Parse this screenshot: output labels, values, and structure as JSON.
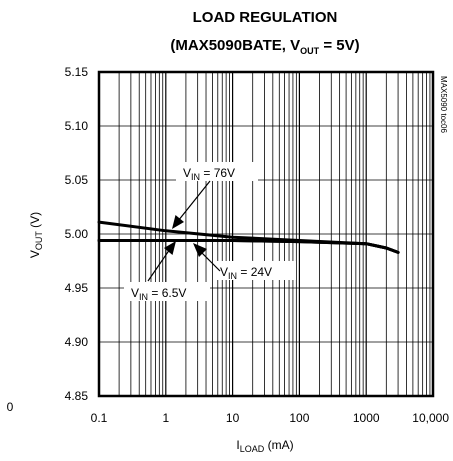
{
  "chart_data": {
    "type": "line",
    "title_line1": "LOAD REGULATION",
    "title_line2_prefix": "(MAX5090BATE, V",
    "title_line2_sub": "OUT",
    "title_line2_suffix": " = 5V)",
    "ylabel_main": "V",
    "ylabel_sub": "OUT",
    "ylabel_suffix": " (V)",
    "xlabel_main": "I",
    "xlabel_sub": "LOAD",
    "xlabel_suffix": " (mA)",
    "x_scale": "log",
    "xlim": [
      0.1,
      10000
    ],
    "ylim": [
      4.85,
      5.15
    ],
    "x_ticks": [
      0.1,
      1,
      10,
      100,
      1000,
      10000
    ],
    "x_tick_labels": [
      "0.1",
      "1",
      "10",
      "100",
      "1000",
      "10,000"
    ],
    "y_ticks": [
      5.15,
      5.1,
      5.05,
      5.0,
      4.95,
      4.9,
      4.85
    ],
    "y_tick_labels": [
      "5.15",
      "5.10",
      "5.05",
      "5.00",
      "4.95",
      "4.90",
      "4.85"
    ],
    "stray_label": "0",
    "grid": true,
    "watermark": "MAX5090 toc06",
    "series": [
      {
        "name": "VIN = 76V",
        "x": [
          0.1,
          1,
          10,
          100,
          1000,
          2000,
          3000
        ],
        "y": [
          5.011,
          5.003,
          4.997,
          4.994,
          4.991,
          4.987,
          4.983
        ]
      },
      {
        "name": "VIN = 24V",
        "x": [
          0.1,
          1,
          10,
          100,
          1000,
          2000,
          3000
        ],
        "y": [
          4.994,
          4.994,
          4.994,
          4.993,
          4.991,
          4.987,
          4.983
        ]
      },
      {
        "name": "VIN = 6.5V",
        "x": [
          0.1,
          1,
          10,
          100,
          1000,
          2000,
          3000
        ],
        "y": [
          4.994,
          4.994,
          4.994,
          4.993,
          4.991,
          4.987,
          4.983
        ]
      }
    ],
    "annotations": [
      {
        "main": "V",
        "sub": "IN",
        "rest": " = 76V",
        "series": "VIN = 76V"
      },
      {
        "main": "V",
        "sub": "IN",
        "rest": " = 24V",
        "series": "VIN = 24V"
      },
      {
        "main": "V",
        "sub": "IN",
        "rest": " = 6.5V",
        "series": "VIN = 6.5V"
      }
    ]
  }
}
